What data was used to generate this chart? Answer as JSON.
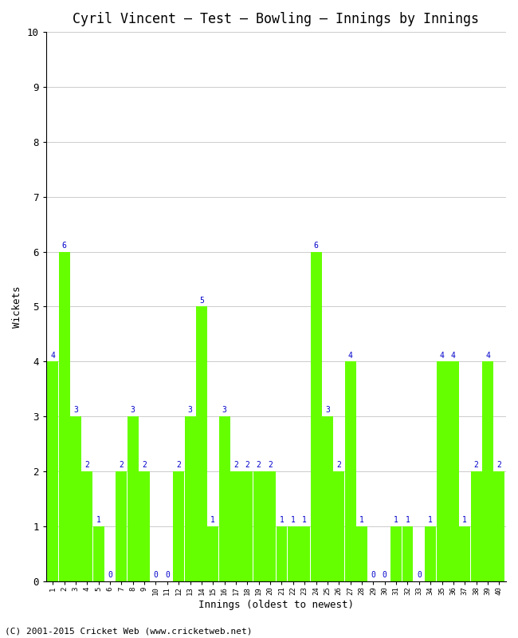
{
  "title": "Cyril Vincent – Test – Bowling – Innings by Innings",
  "xlabel": "Innings (oldest to newest)",
  "ylabel": "Wickets",
  "bar_color": "#66ff00",
  "label_color": "#0000cc",
  "background_color": "#ffffff",
  "grid_color": "#cccccc",
  "ylim": [
    0,
    10
  ],
  "yticks": [
    0,
    1,
    2,
    3,
    4,
    5,
    6,
    7,
    8,
    9,
    10
  ],
  "innings": [
    1,
    2,
    3,
    4,
    5,
    6,
    7,
    8,
    9,
    10,
    11,
    12,
    13,
    14,
    15,
    16,
    17,
    18,
    19,
    20,
    21,
    22,
    23,
    24,
    25,
    26,
    27,
    28,
    29,
    30,
    31,
    32,
    33,
    34,
    35,
    36,
    37,
    38,
    39,
    40
  ],
  "wickets": [
    4,
    6,
    3,
    2,
    1,
    0,
    2,
    3,
    2,
    0,
    0,
    2,
    3,
    5,
    1,
    3,
    2,
    2,
    2,
    2,
    1,
    1,
    1,
    6,
    3,
    2,
    4,
    1,
    0,
    0,
    1,
    1,
    0,
    1,
    4,
    4,
    1,
    2,
    4,
    2
  ],
  "footer": "(C) 2001-2015 Cricket Web (www.cricketweb.net)",
  "title_fontsize": 12,
  "axis_fontsize": 9,
  "label_fontsize": 7,
  "footer_fontsize": 8
}
